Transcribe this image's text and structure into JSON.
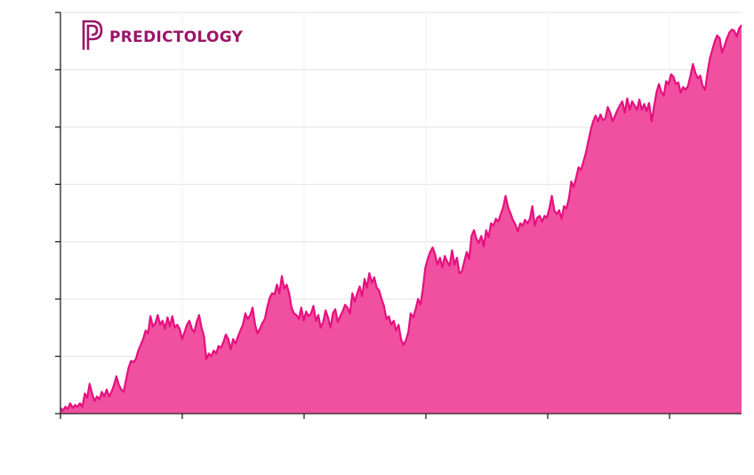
{
  "brand": {
    "name": "PREDICTOLOGY",
    "color": "#9b1468"
  },
  "colors": {
    "line": "#e6107f",
    "fill": "#f0509f",
    "grid": "#e2e2e2",
    "axis": "#222222"
  },
  "chart_data": {
    "type": "area",
    "title": "",
    "xlabel": "",
    "ylabel": "",
    "x_ticks": 6,
    "y_ticks": 8,
    "xlim": [
      0,
      560
    ],
    "ylim": [
      0,
      7
    ],
    "grid": true,
    "legend": "none",
    "points": [
      [
        0,
        0.1
      ],
      [
        2,
        0.05
      ],
      [
        4,
        0.12
      ],
      [
        6,
        0.08
      ],
      [
        8,
        0.18
      ],
      [
        10,
        0.1
      ],
      [
        12,
        0.15
      ],
      [
        14,
        0.12
      ],
      [
        16,
        0.18
      ],
      [
        18,
        0.12
      ],
      [
        20,
        0.35
      ],
      [
        22,
        0.28
      ],
      [
        24,
        0.52
      ],
      [
        26,
        0.35
      ],
      [
        28,
        0.22
      ],
      [
        30,
        0.3
      ],
      [
        32,
        0.25
      ],
      [
        34,
        0.38
      ],
      [
        36,
        0.3
      ],
      [
        38,
        0.42
      ],
      [
        40,
        0.3
      ],
      [
        42,
        0.38
      ],
      [
        44,
        0.5
      ],
      [
        46,
        0.65
      ],
      [
        48,
        0.5
      ],
      [
        50,
        0.42
      ],
      [
        52,
        0.38
      ],
      [
        54,
        0.6
      ],
      [
        56,
        0.8
      ],
      [
        58,
        0.92
      ],
      [
        60,
        0.9
      ],
      [
        62,
        0.95
      ],
      [
        64,
        1.1
      ],
      [
        66,
        1.2
      ],
      [
        68,
        1.3
      ],
      [
        70,
        1.45
      ],
      [
        72,
        1.4
      ],
      [
        74,
        1.7
      ],
      [
        76,
        1.52
      ],
      [
        78,
        1.58
      ],
      [
        80,
        1.72
      ],
      [
        82,
        1.55
      ],
      [
        84,
        1.62
      ],
      [
        86,
        1.48
      ],
      [
        88,
        1.68
      ],
      [
        90,
        1.52
      ],
      [
        92,
        1.7
      ],
      [
        94,
        1.5
      ],
      [
        96,
        1.55
      ],
      [
        98,
        1.48
      ],
      [
        100,
        1.3
      ],
      [
        102,
        1.42
      ],
      [
        104,
        1.55
      ],
      [
        106,
        1.62
      ],
      [
        108,
        1.48
      ],
      [
        110,
        1.42
      ],
      [
        112,
        1.6
      ],
      [
        114,
        1.72
      ],
      [
        116,
        1.5
      ],
      [
        118,
        1.35
      ],
      [
        120,
        0.95
      ],
      [
        122,
        1.05
      ],
      [
        124,
        1.0
      ],
      [
        126,
        1.1
      ],
      [
        128,
        1.05
      ],
      [
        130,
        1.18
      ],
      [
        132,
        1.15
      ],
      [
        134,
        1.25
      ],
      [
        136,
        1.38
      ],
      [
        138,
        1.3
      ],
      [
        140,
        1.12
      ],
      [
        142,
        1.3
      ],
      [
        144,
        1.22
      ],
      [
        146,
        1.35
      ],
      [
        148,
        1.45
      ],
      [
        150,
        1.55
      ],
      [
        152,
        1.75
      ],
      [
        154,
        1.65
      ],
      [
        156,
        1.72
      ],
      [
        158,
        1.85
      ],
      [
        160,
        1.55
      ],
      [
        162,
        1.4
      ],
      [
        164,
        1.48
      ],
      [
        166,
        1.58
      ],
      [
        168,
        1.65
      ],
      [
        170,
        1.85
      ],
      [
        172,
        2.02
      ],
      [
        174,
        2.1
      ],
      [
        176,
        2.08
      ],
      [
        178,
        2.25
      ],
      [
        180,
        2.1
      ],
      [
        182,
        2.4
      ],
      [
        184,
        2.18
      ],
      [
        186,
        2.25
      ],
      [
        188,
        2.1
      ],
      [
        190,
        1.85
      ],
      [
        192,
        1.75
      ],
      [
        194,
        1.72
      ],
      [
        196,
        1.65
      ],
      [
        198,
        1.85
      ],
      [
        200,
        1.62
      ],
      [
        202,
        1.78
      ],
      [
        204,
        1.7
      ],
      [
        206,
        1.75
      ],
      [
        208,
        1.88
      ],
      [
        210,
        1.62
      ],
      [
        212,
        1.72
      ],
      [
        214,
        1.5
      ],
      [
        216,
        1.6
      ],
      [
        218,
        1.8
      ],
      [
        220,
        1.68
      ],
      [
        222,
        1.5
      ],
      [
        224,
        1.75
      ],
      [
        226,
        1.82
      ],
      [
        228,
        1.6
      ],
      [
        230,
        1.7
      ],
      [
        232,
        1.78
      ],
      [
        234,
        1.9
      ],
      [
        236,
        1.85
      ],
      [
        238,
        1.75
      ],
      [
        240,
        2.1
      ],
      [
        242,
        1.95
      ],
      [
        244,
        2.1
      ],
      [
        246,
        2.22
      ],
      [
        248,
        2.05
      ],
      [
        250,
        2.35
      ],
      [
        252,
        2.2
      ],
      [
        254,
        2.45
      ],
      [
        256,
        2.28
      ],
      [
        258,
        2.38
      ],
      [
        260,
        2.2
      ],
      [
        262,
        2.15
      ],
      [
        264,
        2.0
      ],
      [
        266,
        1.88
      ],
      [
        268,
        1.65
      ],
      [
        270,
        1.7
      ],
      [
        272,
        1.55
      ],
      [
        274,
        1.62
      ],
      [
        276,
        1.45
      ],
      [
        278,
        1.55
      ],
      [
        280,
        1.3
      ],
      [
        282,
        1.2
      ],
      [
        284,
        1.28
      ],
      [
        286,
        1.42
      ],
      [
        288,
        1.75
      ],
      [
        290,
        1.68
      ],
      [
        292,
        1.82
      ],
      [
        294,
        2.0
      ],
      [
        296,
        1.9
      ],
      [
        298,
        2.18
      ],
      [
        300,
        2.55
      ],
      [
        302,
        2.7
      ],
      [
        304,
        2.82
      ],
      [
        306,
        2.9
      ],
      [
        308,
        2.78
      ],
      [
        310,
        2.6
      ],
      [
        312,
        2.72
      ],
      [
        314,
        2.55
      ],
      [
        316,
        2.75
      ],
      [
        318,
        2.65
      ],
      [
        320,
        2.58
      ],
      [
        322,
        2.85
      ],
      [
        324,
        2.6
      ],
      [
        326,
        2.72
      ],
      [
        328,
        2.45
      ],
      [
        330,
        2.48
      ],
      [
        332,
        2.65
      ],
      [
        334,
        2.82
      ],
      [
        336,
        2.7
      ],
      [
        338,
        3.1
      ],
      [
        340,
        3.2
      ],
      [
        342,
        3.05
      ],
      [
        344,
        2.98
      ],
      [
        346,
        3.1
      ],
      [
        348,
        2.92
      ],
      [
        350,
        3.2
      ],
      [
        352,
        3.08
      ],
      [
        354,
        3.32
      ],
      [
        356,
        3.28
      ],
      [
        358,
        3.4
      ],
      [
        360,
        3.35
      ],
      [
        362,
        3.48
      ],
      [
        364,
        3.6
      ],
      [
        366,
        3.8
      ],
      [
        368,
        3.6
      ],
      [
        370,
        3.5
      ],
      [
        372,
        3.38
      ],
      [
        374,
        3.3
      ],
      [
        376,
        3.18
      ],
      [
        378,
        3.32
      ],
      [
        380,
        3.28
      ],
      [
        382,
        3.38
      ],
      [
        384,
        3.32
      ],
      [
        386,
        3.4
      ],
      [
        388,
        3.62
      ],
      [
        390,
        3.28
      ],
      [
        392,
        3.42
      ],
      [
        394,
        3.45
      ],
      [
        396,
        3.35
      ],
      [
        398,
        3.45
      ],
      [
        400,
        3.42
      ],
      [
        402,
        3.58
      ],
      [
        404,
        3.8
      ],
      [
        406,
        3.55
      ],
      [
        408,
        3.48
      ],
      [
        410,
        3.55
      ],
      [
        412,
        3.4
      ],
      [
        414,
        3.62
      ],
      [
        416,
        3.58
      ],
      [
        418,
        3.75
      ],
      [
        420,
        4.05
      ],
      [
        422,
        3.95
      ],
      [
        424,
        4.12
      ],
      [
        426,
        4.3
      ],
      [
        428,
        4.25
      ],
      [
        430,
        4.4
      ],
      [
        432,
        4.55
      ],
      [
        434,
        4.75
      ],
      [
        436,
        4.95
      ],
      [
        438,
        5.1
      ],
      [
        440,
        5.2
      ],
      [
        442,
        5.1
      ],
      [
        444,
        5.22
      ],
      [
        446,
        5.12
      ],
      [
        448,
        5.15
      ],
      [
        450,
        5.35
      ],
      [
        452,
        5.25
      ],
      [
        454,
        5.1
      ],
      [
        456,
        5.2
      ],
      [
        458,
        5.3
      ],
      [
        460,
        5.38
      ],
      [
        462,
        5.45
      ],
      [
        464,
        5.25
      ],
      [
        466,
        5.5
      ],
      [
        468,
        5.3
      ],
      [
        470,
        5.45
      ],
      [
        472,
        5.38
      ],
      [
        474,
        5.3
      ],
      [
        476,
        5.48
      ],
      [
        478,
        5.3
      ],
      [
        480,
        5.4
      ],
      [
        482,
        5.28
      ],
      [
        484,
        5.42
      ],
      [
        486,
        5.1
      ],
      [
        488,
        5.35
      ],
      [
        490,
        5.6
      ],
      [
        492,
        5.75
      ],
      [
        494,
        5.62
      ],
      [
        496,
        5.55
      ],
      [
        498,
        5.8
      ],
      [
        500,
        5.75
      ],
      [
        502,
        5.92
      ],
      [
        504,
        5.88
      ],
      [
        506,
        5.75
      ],
      [
        508,
        5.78
      ],
      [
        510,
        5.6
      ],
      [
        512,
        5.7
      ],
      [
        514,
        5.65
      ],
      [
        516,
        5.72
      ],
      [
        518,
        5.9
      ],
      [
        520,
        6.1
      ],
      [
        522,
        5.95
      ],
      [
        524,
        5.85
      ],
      [
        526,
        5.9
      ],
      [
        528,
        5.72
      ],
      [
        530,
        5.65
      ],
      [
        532,
        5.95
      ],
      [
        534,
        6.2
      ],
      [
        536,
        6.35
      ],
      [
        538,
        6.5
      ],
      [
        540,
        6.6
      ],
      [
        542,
        6.55
      ],
      [
        544,
        6.3
      ],
      [
        546,
        6.42
      ],
      [
        548,
        6.55
      ],
      [
        550,
        6.65
      ],
      [
        552,
        6.7
      ],
      [
        554,
        6.68
      ],
      [
        556,
        6.58
      ],
      [
        558,
        6.72
      ],
      [
        560,
        6.78
      ]
    ]
  }
}
